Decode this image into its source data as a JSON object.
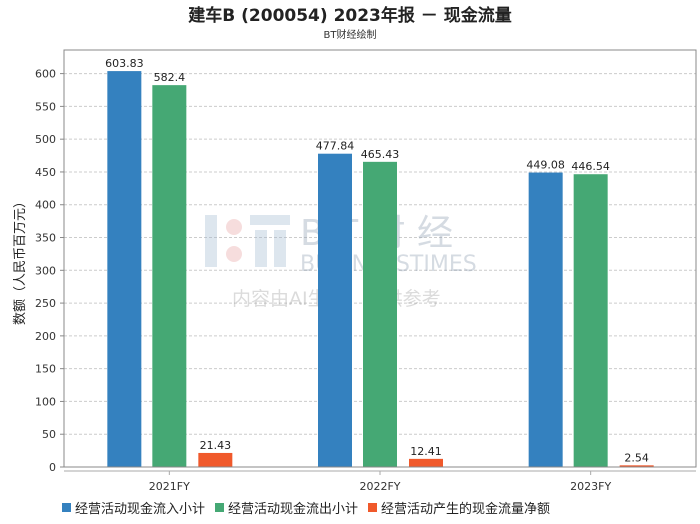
{
  "chart_data": {
    "type": "bar",
    "title": "建车B (200054) 2023年报 － 现金流量",
    "subtitle": "BT财经绘制",
    "ylabel": "数额（人民币百万元）",
    "xlabel": "",
    "categories": [
      "2021FY",
      "2022FY",
      "2023FY"
    ],
    "ylim": [
      0,
      636
    ],
    "yticks": [
      0,
      50,
      100,
      150,
      200,
      250,
      300,
      350,
      400,
      450,
      500,
      550,
      600
    ],
    "grid": true,
    "legend_position": "bottom",
    "series": [
      {
        "name": "经营活动现金流入小计",
        "color": "#3481bf",
        "values": [
          603.83,
          477.84,
          449.08
        ],
        "labels": [
          "603.83",
          "477.84",
          "449.08"
        ]
      },
      {
        "name": "经营活动现金流出小计",
        "color": "#45a874",
        "values": [
          582.4,
          465.43,
          446.54
        ],
        "labels": [
          "582.4",
          "465.43",
          "446.54"
        ]
      },
      {
        "name": "经营活动产生的现金流量净额",
        "color": "#f0592b",
        "values": [
          21.43,
          12.41,
          2.54
        ],
        "labels": [
          "21.43",
          "12.41",
          "2.54"
        ]
      }
    ]
  },
  "watermark": {
    "line1": "BT财经",
    "line2": "BUSINESSTIMES",
    "line3": "内容由AI生成，仅供参考"
  }
}
